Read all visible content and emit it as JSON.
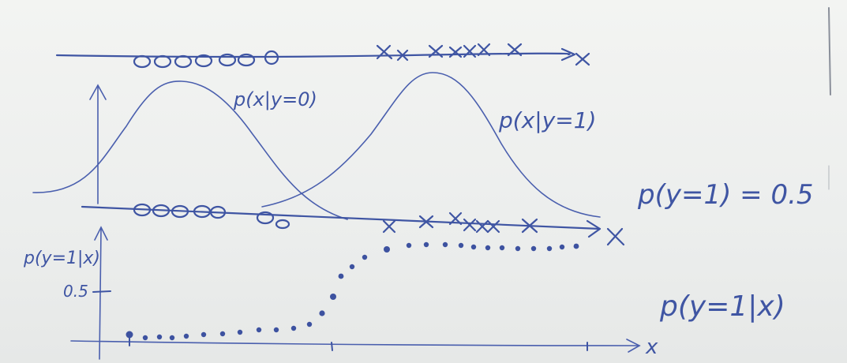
{
  "labels": {
    "class0_density": "p(x|y=0)",
    "class1_density": "p(x|y=1)",
    "prior": "p(y=1) = 0.5",
    "posterior": "p(y=1|x)",
    "posterior_axis": "p(y=1|x)",
    "half_tick": "0.5",
    "x_axis": "x"
  },
  "colors": {
    "ink": "#3f55a3",
    "board": "#eef0ee"
  }
}
